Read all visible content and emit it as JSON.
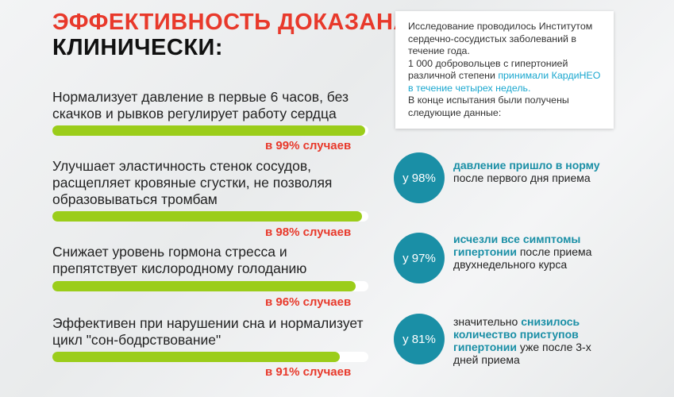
{
  "title": {
    "line1": "ЭФФЕКТИВНОСТЬ ДОКАЗАНА",
    "line2": "КЛИНИЧЕСКИ:"
  },
  "benefits": [
    {
      "text": "Нормализует давление в первые 6 часов, без скачков и рывков регулирует работу сердца",
      "percent_label": "в 99% случаев",
      "fill": 0.99
    },
    {
      "text": "Улучшает эластичность стенок сосудов, расщепляет кровяные сгустки, не позволяя образовываться тромбам",
      "percent_label": "в 98% случаев",
      "fill": 0.98
    },
    {
      "text": "Снижает уровень гормона стресса и препятствует кислородному голоданию",
      "percent_label": "в 96% случаев",
      "fill": 0.96
    },
    {
      "text": "Эффективен при нарушении сна и нормализует цикл \"сон-бодрствование\"",
      "percent_label": "в 91% случаев",
      "fill": 0.91
    }
  ],
  "info": {
    "p1": "Исследование проводилось Институтом сердечно-сосудистых заболеваний в течение года.",
    "p2a": "1 000 добровольцев с гипертонией различной степени ",
    "p2b": "принимали КардиНЕО в течение четырех недель.",
    "p3": "В конце испытания были получены следующие данные:"
  },
  "stats": [
    {
      "circle": "у 98%",
      "pre": "",
      "bold": "давление пришло в норму",
      "post": " после первого дня приема"
    },
    {
      "circle": "у 97%",
      "pre": "",
      "bold": "исчезли все симптомы гипертонии",
      "post": " после приема двухнедельного курса"
    },
    {
      "circle": "у 81%",
      "pre": "значительно ",
      "bold": "снизилось количество приступов гипертонии",
      "post": " уже после 3-х дней приема"
    }
  ],
  "colors": {
    "accent_red": "#e8392b",
    "bar_green": "#9bcd1a",
    "teal": "#1a8fa6",
    "link_blue": "#1aa7cf"
  }
}
